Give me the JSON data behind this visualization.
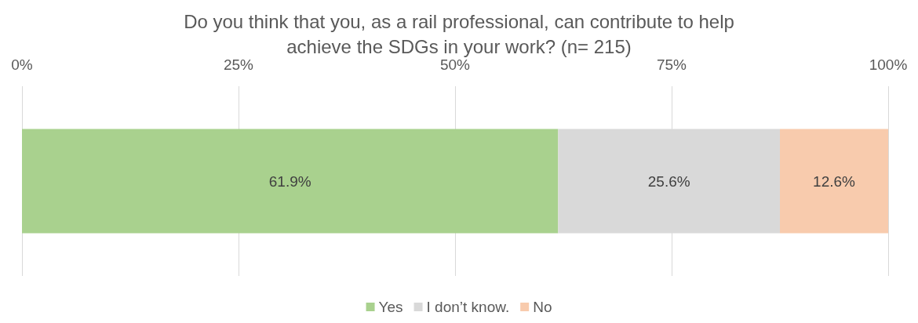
{
  "chart_data": {
    "type": "bar",
    "orientation": "horizontal",
    "stacked": true,
    "title": "Do you think that you, as a rail professional, can contribute to help\nachieve the SDGs in your work? (n= 215)",
    "categories": [
      null
    ],
    "series": [
      {
        "name": "Yes",
        "color": "#a9d18e",
        "values": [
          61.9
        ],
        "value_labels": [
          "61.9%"
        ]
      },
      {
        "name": "I don’t know.",
        "color": "#d9d9d9",
        "values": [
          25.6
        ],
        "value_labels": [
          "25.6%"
        ]
      },
      {
        "name": "No",
        "color": "#f8cbad",
        "values": [
          12.6
        ],
        "value_labels": [
          "12.6%"
        ]
      }
    ],
    "xlim": [
      0,
      100
    ],
    "xticks": [
      {
        "value": 0,
        "label": "0%"
      },
      {
        "value": 25,
        "label": "25%"
      },
      {
        "value": 50,
        "label": "50%"
      },
      {
        "value": 75,
        "label": "75%"
      },
      {
        "value": 100,
        "label": "100%"
      }
    ],
    "grid": "x",
    "legend": "bottom"
  }
}
